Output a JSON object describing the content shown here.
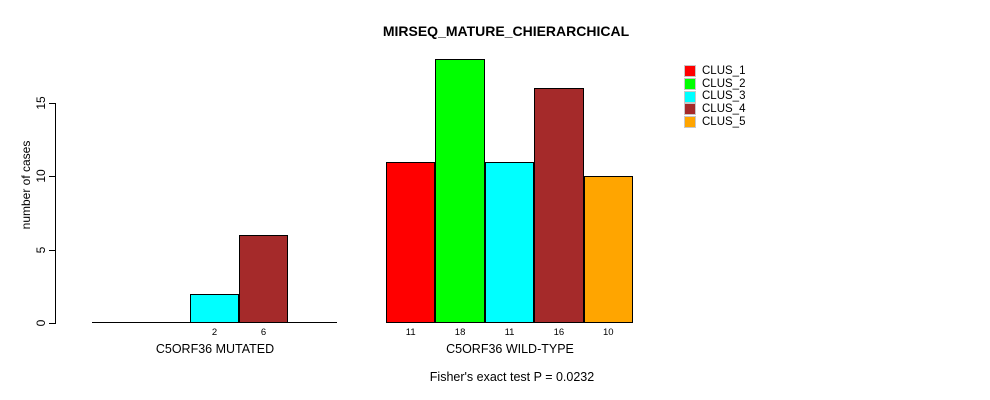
{
  "chart_data": {
    "type": "bar",
    "title": "MIRSEQ_MATURE_CHIERARCHICAL",
    "ylabel": "number of cases",
    "yticks": [
      0,
      5,
      10,
      15
    ],
    "ylim": [
      0,
      18.8
    ],
    "grid": false,
    "legend": {
      "position": "top-right",
      "entries": [
        {
          "label": "CLUS_1",
          "color": "#FF0000"
        },
        {
          "label": "CLUS_2",
          "color": "#00FF00"
        },
        {
          "label": "CLUS_3",
          "color": "#00FFFF"
        },
        {
          "label": "CLUS_4",
          "color": "#A52A2A"
        },
        {
          "label": "CLUS_5",
          "color": "#FFA500"
        }
      ]
    },
    "groups": [
      {
        "label": "C5ORF36 MUTATED",
        "slots": 5,
        "baseline_axis": true,
        "bars": [
          {
            "slot": 2,
            "cluster": "CLUS_3",
            "value": 2,
            "color": "#00FFFF"
          },
          {
            "slot": 3,
            "cluster": "CLUS_4",
            "value": 6,
            "color": "#A52A2A"
          }
        ]
      },
      {
        "label": "C5ORF36 WILD-TYPE",
        "slots": 5,
        "baseline_axis": false,
        "bars": [
          {
            "slot": 0,
            "cluster": "CLUS_1",
            "value": 11,
            "color": "#FF0000"
          },
          {
            "slot": 1,
            "cluster": "CLUS_2",
            "value": 18,
            "color": "#00FF00"
          },
          {
            "slot": 2,
            "cluster": "CLUS_3",
            "value": 11,
            "color": "#00FFFF"
          },
          {
            "slot": 3,
            "cluster": "CLUS_4",
            "value": 16,
            "color": "#A52A2A"
          },
          {
            "slot": 4,
            "cluster": "CLUS_5",
            "value": 10,
            "color": "#FFA500"
          }
        ]
      }
    ],
    "footnote": "Fisher's exact test P = 0.0232"
  }
}
